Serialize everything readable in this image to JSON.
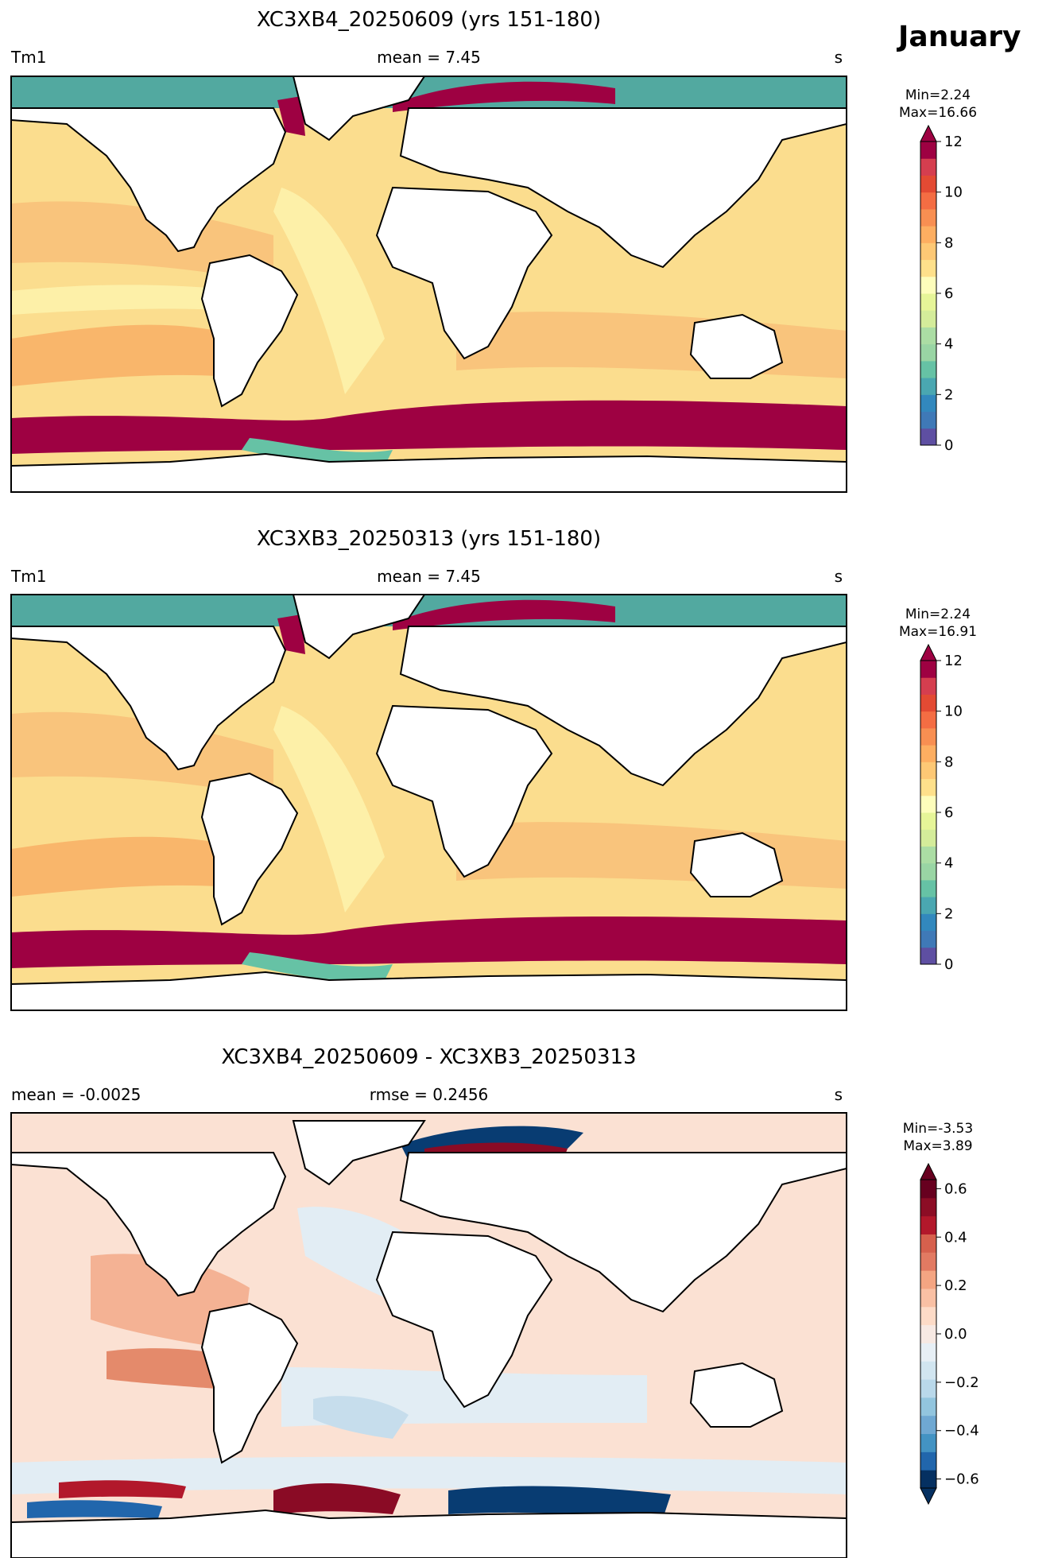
{
  "heading": "January",
  "panels": [
    {
      "title": "XC3XB4_20250609 (yrs 151-180)",
      "left": "Tm1",
      "center": "mean = 7.45",
      "right": "s",
      "stat_min": "Min=2.24",
      "stat_max": "Max=16.66",
      "colorbar": {
        "ticks": [
          "0",
          "2",
          "4",
          "6",
          "8",
          "10",
          "12"
        ],
        "colors": [
          "#5e4fa2",
          "#3f79b7",
          "#3288bd",
          "#4aa7b1",
          "#66c2a5",
          "#99d5a4",
          "#abdda4",
          "#d4ec9a",
          "#e6f598",
          "#fdfdbb",
          "#fee08b",
          "#fdc875",
          "#fdae61",
          "#f88f52",
          "#f46d43",
          "#e34a33",
          "#d53e4f",
          "#9e0142"
        ],
        "extend": "max"
      }
    },
    {
      "title": "XC3XB3_20250313 (yrs 151-180)",
      "left": "Tm1",
      "center": "mean = 7.45",
      "right": "s",
      "stat_min": "Min=2.24",
      "stat_max": "Max=16.91",
      "colorbar": {
        "ticks": [
          "0",
          "2",
          "4",
          "6",
          "8",
          "10",
          "12"
        ],
        "colors": [
          "#5e4fa2",
          "#3f79b7",
          "#3288bd",
          "#4aa7b1",
          "#66c2a5",
          "#99d5a4",
          "#abdda4",
          "#d4ec9a",
          "#e6f598",
          "#fdfdbb",
          "#fee08b",
          "#fdc875",
          "#fdae61",
          "#f88f52",
          "#f46d43",
          "#e34a33",
          "#d53e4f",
          "#9e0142"
        ],
        "extend": "max"
      }
    },
    {
      "title": "XC3XB4_20250609 - XC3XB3_20250313",
      "left": "mean = -0.0025",
      "center": "rmse = 0.2456",
      "right": "s",
      "stat_min": "Min=-3.53",
      "stat_max": "Max=3.89",
      "colorbar": {
        "ticks": [
          "−0.6",
          "−0.4",
          "−0.2",
          "0.0",
          "0.2",
          "0.4",
          "0.6"
        ],
        "colors": [
          "#053061",
          "#2166ac",
          "#4393c3",
          "#6fa8d2",
          "#92c5de",
          "#b9d8ea",
          "#d1e5f0",
          "#e7eff5",
          "#f7e9e3",
          "#fddbc7",
          "#f9c0a4",
          "#f4a582",
          "#e27a62",
          "#d6604d",
          "#b2182b",
          "#8c0d25",
          "#67001f"
        ],
        "extend": "both"
      }
    }
  ],
  "colors": {
    "land": "#ffffff",
    "coast": "#000000",
    "arctic": "#52a9a0",
    "ocean_base": "#fbdd8e",
    "ocean_warm": "#f9b66b",
    "ocean_light": "#fdf5b4",
    "ocean_green": "#d7ee9c",
    "southern_high": "#9e0142",
    "diff_base": "#fbe1d3",
    "diff_light_blue": "#e2edf4",
    "diff_blue": "#c6ddec",
    "diff_dark_blue": "#083c72",
    "diff_dark_red": "#8a0b25",
    "diff_red": "#e48a6b"
  }
}
